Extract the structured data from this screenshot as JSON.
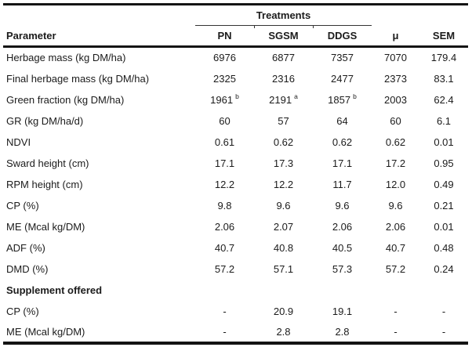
{
  "table": {
    "treatments_label": "Treatments",
    "columns": [
      "Parameter",
      "PN",
      "SGSM",
      "DDGS",
      "μ",
      "SEM"
    ],
    "rows": [
      {
        "param": "Herbage mass (kg DM/ha)",
        "section": false,
        "values": [
          "6976",
          "6877",
          "7357",
          "7070",
          "179.4"
        ],
        "sups": [
          "",
          "",
          "",
          "",
          ""
        ]
      },
      {
        "param": "Final herbage mass (kg DM/ha)",
        "section": false,
        "values": [
          "2325",
          "2316",
          "2477",
          "2373",
          "83.1"
        ],
        "sups": [
          "",
          "",
          "",
          "",
          ""
        ]
      },
      {
        "param": "Green fraction (kg DM/ha)",
        "section": false,
        "values": [
          "1961",
          "2191",
          "1857",
          "2003",
          "62.4"
        ],
        "sups": [
          "b",
          "a",
          "b",
          "",
          ""
        ]
      },
      {
        "param": "GR (kg DM/ha/d)",
        "section": false,
        "values": [
          "60",
          "57",
          "64",
          "60",
          "6.1"
        ],
        "sups": [
          "",
          "",
          "",
          "",
          ""
        ]
      },
      {
        "param": "NDVI",
        "section": false,
        "values": [
          "0.61",
          "0.62",
          "0.62",
          "0.62",
          "0.01"
        ],
        "sups": [
          "",
          "",
          "",
          "",
          ""
        ]
      },
      {
        "param": "Sward height (cm)",
        "section": false,
        "values": [
          "17.1",
          "17.3",
          "17.1",
          "17.2",
          "0.95"
        ],
        "sups": [
          "",
          "",
          "",
          "",
          ""
        ]
      },
      {
        "param": "RPM height (cm)",
        "section": false,
        "values": [
          "12.2",
          "12.2",
          "11.7",
          "12.0",
          "0.49"
        ],
        "sups": [
          "",
          "",
          "",
          "",
          ""
        ]
      },
      {
        "param": "CP (%)",
        "section": false,
        "values": [
          "9.8",
          "9.6",
          "9.6",
          "9.6",
          "0.21"
        ],
        "sups": [
          "",
          "",
          "",
          "",
          ""
        ]
      },
      {
        "param": "ME (Mcal kg/DM)",
        "section": false,
        "values": [
          "2.06",
          "2.07",
          "2.06",
          "2.06",
          "0.01"
        ],
        "sups": [
          "",
          "",
          "",
          "",
          ""
        ]
      },
      {
        "param": "ADF (%)",
        "section": false,
        "values": [
          "40.7",
          "40.8",
          "40.5",
          "40.7",
          "0.48"
        ],
        "sups": [
          "",
          "",
          "",
          "",
          ""
        ]
      },
      {
        "param": "DMD (%)",
        "section": false,
        "values": [
          "57.2",
          "57.1",
          "57.3",
          "57.2",
          "0.24"
        ],
        "sups": [
          "",
          "",
          "",
          "",
          ""
        ]
      },
      {
        "param": "Supplement offered",
        "section": true,
        "values": [
          "",
          "",
          "",
          "",
          ""
        ],
        "sups": [
          "",
          "",
          "",
          "",
          ""
        ]
      },
      {
        "param": "CP (%)",
        "section": false,
        "values": [
          "-",
          "20.9",
          "19.1",
          "-",
          "-"
        ],
        "sups": [
          "",
          "",
          "",
          "",
          ""
        ]
      },
      {
        "param": "ME (Mcal kg/DM)",
        "section": false,
        "values": [
          "-",
          "2.8",
          "2.8",
          "-",
          "-"
        ],
        "sups": [
          "",
          "",
          "",
          "",
          ""
        ]
      }
    ]
  },
  "colors": {
    "text": "#1b1b1b",
    "thick_rule": "#141414",
    "thin_rule": "#333333",
    "background": "#ffffff"
  }
}
